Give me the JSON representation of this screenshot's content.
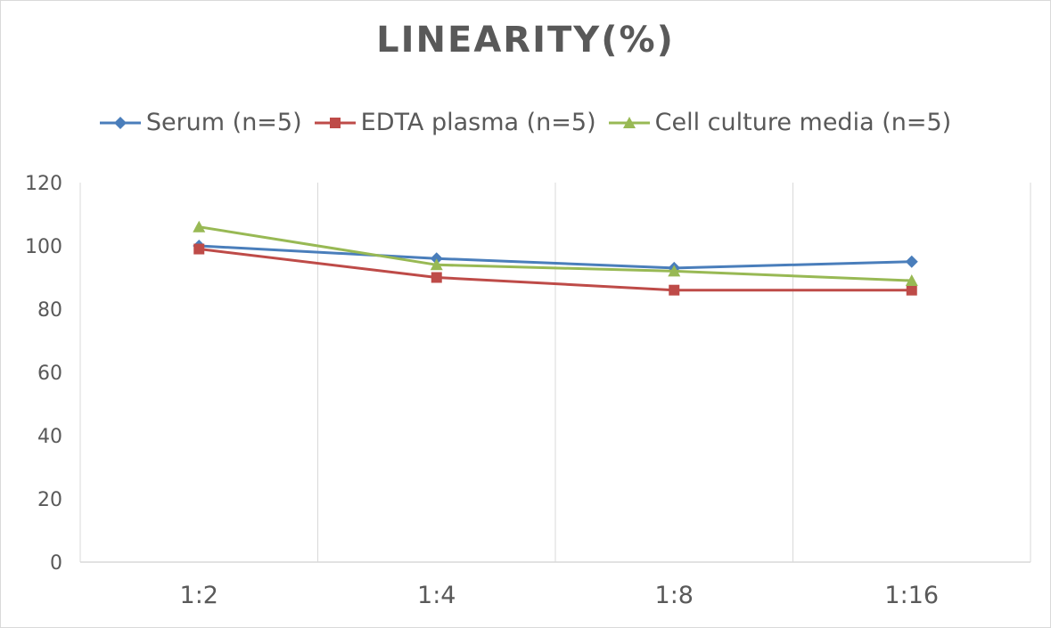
{
  "chart_data": {
    "type": "line",
    "title": "LINEARITY(%)",
    "categories": [
      "1:2",
      "1:4",
      "1:8",
      "1:16"
    ],
    "series": [
      {
        "name": "Serum (n=5)",
        "values": [
          100,
          96,
          93,
          95
        ],
        "color": "#4a7ebb",
        "marker": "diamond"
      },
      {
        "name": "EDTA plasma (n=5)",
        "values": [
          99,
          90,
          86,
          86
        ],
        "color": "#be4b48",
        "marker": "square"
      },
      {
        "name": "Cell culture media (n=5)",
        "values": [
          106,
          94,
          92,
          89
        ],
        "color": "#98b954",
        "marker": "triangle"
      }
    ],
    "yticks": [
      "0",
      "20",
      "40",
      "60",
      "80",
      "100",
      "120"
    ],
    "ylim": [
      0,
      120
    ],
    "legend": "top",
    "grid": "vertical"
  }
}
